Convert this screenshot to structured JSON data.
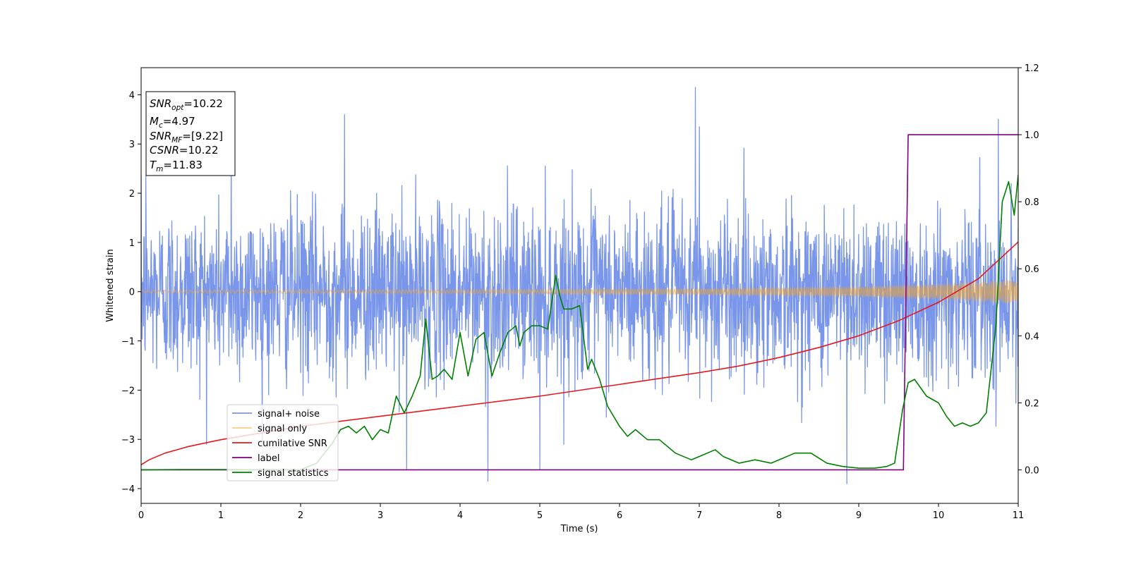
{
  "chart_data": {
    "type": "line",
    "xlabel": "Time (s)",
    "ylabel": "Whitened strain",
    "xlim": [
      0,
      11
    ],
    "ylim": [
      -4.3,
      4.55
    ],
    "y2lim": [
      -0.1,
      1.2
    ],
    "grid": false,
    "legend_placement": "lower-left",
    "x_ticks": [
      0,
      1,
      2,
      3,
      4,
      5,
      6,
      7,
      8,
      9,
      10,
      11
    ],
    "x_tick_labels": [
      "0",
      "1",
      "2",
      "3",
      "4",
      "5",
      "6",
      "7",
      "8",
      "9",
      "10",
      "11"
    ],
    "y_ticks": [
      -4,
      -3,
      -2,
      -1,
      0,
      1,
      2,
      3,
      4
    ],
    "y_tick_labels": [
      "−4",
      "−3",
      "−2",
      "−1",
      "0",
      "1",
      "2",
      "3",
      "4"
    ],
    "y2_ticks": [
      0.0,
      0.2,
      0.4,
      0.6,
      0.8,
      1.0,
      1.2
    ],
    "y2_tick_labels": [
      "0.0",
      "0.2",
      "0.4",
      "0.6",
      "0.8",
      "1.0",
      "1.2"
    ],
    "annotation": {
      "lines": [
        {
          "base": "SNR",
          "sub": "opt",
          "value": "=10.22"
        },
        {
          "base": "M",
          "sub": "c",
          "value": "=4.97"
        },
        {
          "base": "SNR",
          "sub": "MF",
          "value": "=[9.22]"
        },
        {
          "base": "CSNR",
          "sub": "",
          "value": "=10.22"
        },
        {
          "base": "T",
          "sub": "m",
          "value": "=11.83"
        }
      ]
    },
    "series": [
      {
        "name": "signal+ noise",
        "color": "#4169e1",
        "axis": "left",
        "kind": "noise",
        "sigma": 0.85,
        "spikes": [
          [
            1.13,
            3.25
          ],
          [
            2.55,
            3.6
          ],
          [
            3.33,
            -3.6
          ],
          [
            4.35,
            -3.85
          ],
          [
            5.0,
            -3.6
          ],
          [
            6.95,
            4.15
          ],
          [
            8.85,
            -3.9
          ],
          [
            10.75,
            3.5
          ],
          [
            0.06,
            2.35
          ],
          [
            7.0,
            3.35
          ]
        ]
      },
      {
        "name": "signal only",
        "color": "#f5a623",
        "axis": "left",
        "kind": "chirp",
        "envelope": [
          [
            0,
            0.03
          ],
          [
            4,
            0.04
          ],
          [
            7,
            0.06
          ],
          [
            9,
            0.1
          ],
          [
            10,
            0.15
          ],
          [
            11,
            0.24
          ]
        ]
      },
      {
        "name": "cumilative SNR",
        "color": "#e31a1c",
        "axis": "right",
        "x": [
          0,
          0.1,
          0.3,
          0.6,
          1,
          1.5,
          2,
          3,
          4,
          5,
          6,
          7,
          7.5,
          8,
          8.5,
          9,
          9.5,
          10,
          10.5,
          11
        ],
        "y": [
          0.015,
          0.03,
          0.05,
          0.07,
          0.09,
          0.11,
          0.13,
          0.16,
          0.19,
          0.22,
          0.255,
          0.29,
          0.31,
          0.335,
          0.365,
          0.4,
          0.445,
          0.5,
          0.57,
          0.68
        ]
      },
      {
        "name": "label",
        "color": "#800080",
        "axis": "right",
        "x": [
          0,
          9.56,
          9.62,
          11
        ],
        "y": [
          0,
          0,
          1,
          1
        ]
      },
      {
        "name": "signal statistics",
        "color": "#008000",
        "axis": "right",
        "x": [
          0,
          0.5,
          1,
          1.5,
          2,
          2.2,
          2.3,
          2.4,
          2.5,
          2.6,
          2.7,
          2.8,
          2.9,
          3.0,
          3.1,
          3.2,
          3.3,
          3.4,
          3.5,
          3.57,
          3.65,
          3.72,
          3.8,
          3.9,
          4.0,
          4.1,
          4.2,
          4.3,
          4.4,
          4.5,
          4.6,
          4.7,
          4.75,
          4.8,
          4.9,
          5.0,
          5.1,
          5.2,
          5.25,
          5.3,
          5.4,
          5.5,
          5.6,
          5.65,
          5.75,
          5.85,
          6.0,
          6.1,
          6.2,
          6.35,
          6.5,
          6.7,
          6.9,
          7.0,
          7.2,
          7.3,
          7.5,
          7.7,
          7.9,
          8.0,
          8.2,
          8.4,
          8.6,
          8.8,
          9.0,
          9.2,
          9.35,
          9.45,
          9.55,
          9.62,
          9.7,
          9.85,
          10.0,
          10.1,
          10.2,
          10.3,
          10.4,
          10.5,
          10.6,
          10.72,
          10.8,
          10.88,
          10.95,
          11.0
        ],
        "y": [
          0.0,
          0.001,
          0.001,
          0.0,
          0.0,
          0.02,
          0.05,
          0.08,
          0.12,
          0.13,
          0.11,
          0.13,
          0.09,
          0.12,
          0.11,
          0.22,
          0.17,
          0.22,
          0.28,
          0.45,
          0.27,
          0.28,
          0.3,
          0.27,
          0.41,
          0.28,
          0.39,
          0.41,
          0.28,
          0.35,
          0.41,
          0.43,
          0.37,
          0.41,
          0.43,
          0.43,
          0.42,
          0.58,
          0.52,
          0.48,
          0.48,
          0.49,
          0.3,
          0.33,
          0.27,
          0.19,
          0.13,
          0.1,
          0.12,
          0.09,
          0.09,
          0.05,
          0.03,
          0.04,
          0.06,
          0.04,
          0.02,
          0.03,
          0.02,
          0.03,
          0.05,
          0.05,
          0.02,
          0.01,
          0.005,
          0.005,
          0.01,
          0.02,
          0.18,
          0.26,
          0.27,
          0.22,
          0.2,
          0.16,
          0.13,
          0.14,
          0.13,
          0.14,
          0.17,
          0.43,
          0.8,
          0.86,
          0.76,
          0.88
        ]
      }
    ]
  }
}
